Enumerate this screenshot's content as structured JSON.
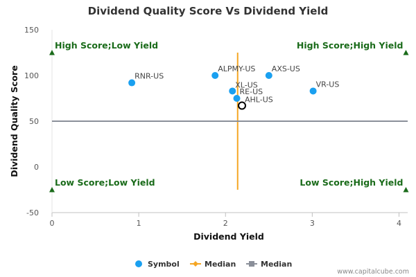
{
  "chart_data": {
    "type": "scatter",
    "title": "Dividend Quality Score Vs Dividend Yield",
    "xlabel": "Dividend Yield",
    "ylabel": "Dividend Quality Score",
    "xlim": [
      0,
      4.1
    ],
    "ylim": [
      -50,
      150
    ],
    "x_ticks": [
      0,
      1,
      2,
      3,
      4
    ],
    "y_ticks": [
      -50,
      0,
      50,
      100,
      150
    ],
    "grid": false,
    "legend_position": "bottom",
    "series": [
      {
        "name": "Symbol",
        "color": "#1aa0f0",
        "points": [
          {
            "label": "RNR-US",
            "x": 0.92,
            "y": 92
          },
          {
            "label": "ALPMY-US",
            "x": 1.88,
            "y": 100
          },
          {
            "label": "AXS-US",
            "x": 2.5,
            "y": 100
          },
          {
            "label": "XL-US",
            "x": 2.08,
            "y": 83
          },
          {
            "label": "RE-US",
            "x": 2.13,
            "y": 75
          },
          {
            "label": "VR-US",
            "x": 3.01,
            "y": 83
          }
        ]
      },
      {
        "name": "Median",
        "color": "#f5a623",
        "orientation": "vertical",
        "x": 2.14,
        "y_range": [
          -25,
          125
        ]
      },
      {
        "name": "Median",
        "color": "#8a8f99",
        "orientation": "horizontal",
        "y": 50,
        "x_range": [
          0,
          4.1
        ]
      }
    ],
    "highlight": {
      "label": "AHL-US",
      "x": 2.19,
      "y": 67
    },
    "quadrant_labels": [
      {
        "text": "High Score;Low Yield",
        "x": 0,
        "y": 125,
        "side": "left"
      },
      {
        "text": "High Score;High Yield",
        "x": 4.08,
        "y": 125,
        "side": "right"
      },
      {
        "text": "Low Score;Low Yield",
        "x": 0,
        "y": -25,
        "side": "left"
      },
      {
        "text": "Low Score;High Yield",
        "x": 4.08,
        "y": -25,
        "side": "right"
      }
    ],
    "quadrant_color": "#1a6b1a"
  },
  "credit": "www.capitalcube.com"
}
